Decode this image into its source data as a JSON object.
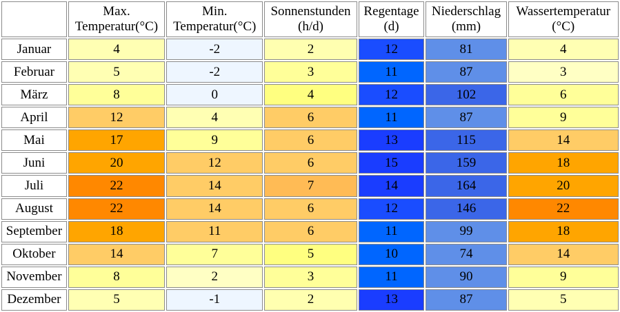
{
  "table": {
    "headers": [
      {
        "line1": "Max.",
        "line2": "Temperatur(°C)"
      },
      {
        "line1": "Min.",
        "line2": "Temperatur(°C)"
      },
      {
        "line1": "Sonnenstunden",
        "line2": "(h/d)"
      },
      {
        "line1": "Regentage",
        "line2": "(d)"
      },
      {
        "line1": "Niederschlag",
        "line2": "(mm)"
      },
      {
        "line1": "Wassertemperatur",
        "line2": "(°C)"
      }
    ],
    "rows": [
      {
        "month": "Januar",
        "values": [
          "4",
          "-2",
          "2",
          "12",
          "81",
          "4"
        ],
        "colors": [
          "#ffffb3",
          "#eef6ff",
          "#ffffb0",
          "#1a4dff",
          "#5f8fe8",
          "#ffffb3"
        ]
      },
      {
        "month": "Februar",
        "values": [
          "5",
          "-2",
          "3",
          "11",
          "87",
          "3"
        ],
        "colors": [
          "#ffffb3",
          "#eef6ff",
          "#ffff99",
          "#0066ff",
          "#5f8fe8",
          "#ffffc4"
        ]
      },
      {
        "month": "März",
        "values": [
          "8",
          "0",
          "4",
          "12",
          "102",
          "6"
        ],
        "colors": [
          "#ffff99",
          "#eef6ff",
          "#ffff80",
          "#1a4dff",
          "#3b66e8",
          "#ffff99"
        ]
      },
      {
        "month": "April",
        "values": [
          "12",
          "4",
          "6",
          "11",
          "87",
          "9"
        ],
        "colors": [
          "#ffcc66",
          "#ffffb3",
          "#ffcc66",
          "#0066ff",
          "#5f8fe8",
          "#ffff99"
        ]
      },
      {
        "month": "Mai",
        "values": [
          "17",
          "9",
          "6",
          "13",
          "115",
          "14"
        ],
        "colors": [
          "#ffa500",
          "#ffff99",
          "#ffcc66",
          "#1a3dff",
          "#3b66e8",
          "#ffcc66"
        ]
      },
      {
        "month": "Juni",
        "values": [
          "20",
          "12",
          "6",
          "15",
          "159",
          "18"
        ],
        "colors": [
          "#ffa500",
          "#ffcc66",
          "#ffcc66",
          "#1a3dff",
          "#3b66e8",
          "#ffa500"
        ]
      },
      {
        "month": "Juli",
        "values": [
          "22",
          "14",
          "7",
          "14",
          "164",
          "20"
        ],
        "colors": [
          "#ff8800",
          "#ffcc66",
          "#ffbb55",
          "#1a3dff",
          "#3b66e8",
          "#ffa500"
        ]
      },
      {
        "month": "August",
        "values": [
          "22",
          "14",
          "6",
          "12",
          "146",
          "22"
        ],
        "colors": [
          "#ff8800",
          "#ffcc66",
          "#ffcc66",
          "#1a4dff",
          "#3b66e8",
          "#ff8800"
        ]
      },
      {
        "month": "September",
        "values": [
          "18",
          "11",
          "6",
          "11",
          "99",
          "18"
        ],
        "colors": [
          "#ffa500",
          "#ffcc66",
          "#ffcc66",
          "#0066ff",
          "#5f8fe8",
          "#ffa500"
        ]
      },
      {
        "month": "Oktober",
        "values": [
          "14",
          "7",
          "5",
          "10",
          "74",
          "14"
        ],
        "colors": [
          "#ffcc66",
          "#ffff99",
          "#ffff80",
          "#0066ff",
          "#5f8fe8",
          "#ffcc66"
        ]
      },
      {
        "month": "November",
        "values": [
          "8",
          "2",
          "3",
          "11",
          "90",
          "9"
        ],
        "colors": [
          "#ffff99",
          "#ffffc4",
          "#ffff99",
          "#0066ff",
          "#5f8fe8",
          "#ffff99"
        ]
      },
      {
        "month": "Dezember",
        "values": [
          "5",
          "-1",
          "2",
          "13",
          "87",
          "5"
        ],
        "colors": [
          "#ffffb3",
          "#eef6ff",
          "#ffffb0",
          "#1a3dff",
          "#5f8fe8",
          "#ffffb3"
        ]
      }
    ]
  }
}
